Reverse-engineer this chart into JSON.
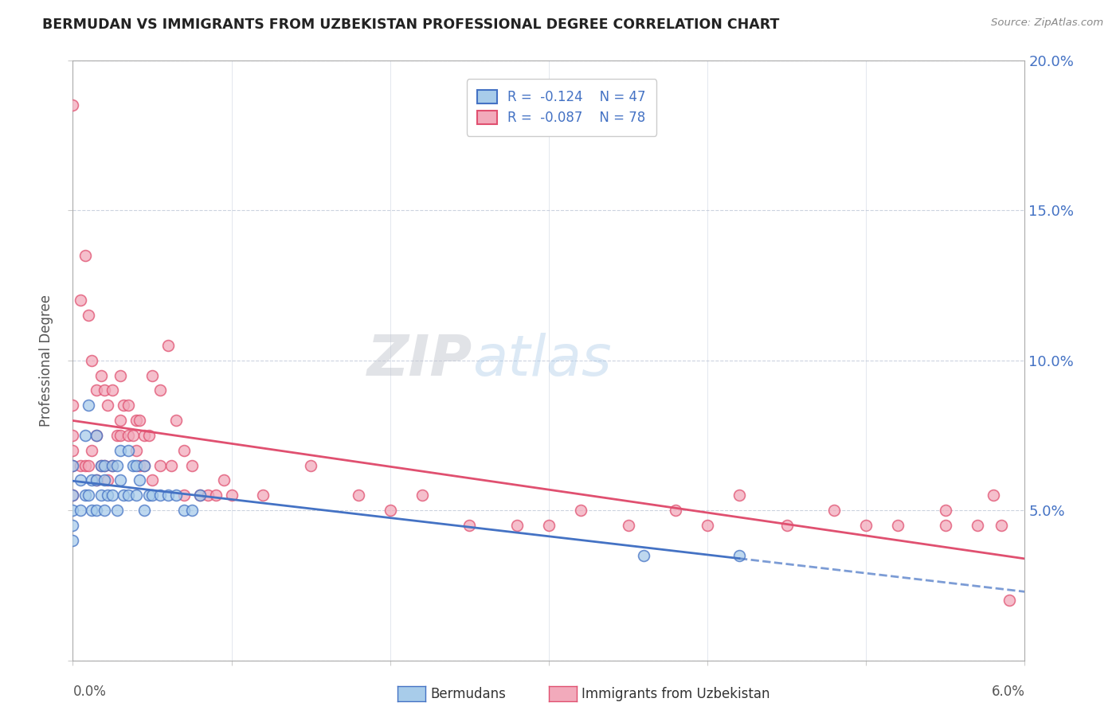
{
  "title": "BERMUDAN VS IMMIGRANTS FROM UZBEKISTAN PROFESSIONAL DEGREE CORRELATION CHART",
  "source": "Source: ZipAtlas.com",
  "ylabel": "Professional Degree",
  "xlim": [
    0.0,
    6.0
  ],
  "ylim": [
    0.0,
    20.0
  ],
  "legend_label1": "Bermudans",
  "legend_label2": "Immigrants from Uzbekistan",
  "r1": -0.124,
  "n1": 47,
  "r2": -0.087,
  "n2": 78,
  "color1": "#a8ccea",
  "color2": "#f2aabb",
  "line_color1": "#4472c4",
  "line_color2": "#e05070",
  "watermark_zip": "ZIP",
  "watermark_atlas": "atlas",
  "blue_scatter_x": [
    0.0,
    0.0,
    0.0,
    0.0,
    0.0,
    0.05,
    0.05,
    0.08,
    0.08,
    0.1,
    0.1,
    0.12,
    0.12,
    0.15,
    0.15,
    0.15,
    0.18,
    0.18,
    0.2,
    0.2,
    0.2,
    0.22,
    0.25,
    0.25,
    0.28,
    0.28,
    0.3,
    0.3,
    0.32,
    0.35,
    0.35,
    0.38,
    0.4,
    0.4,
    0.42,
    0.45,
    0.45,
    0.48,
    0.5,
    0.55,
    0.6,
    0.65,
    0.7,
    0.75,
    0.8,
    3.6,
    4.2
  ],
  "blue_scatter_y": [
    6.5,
    5.5,
    5.0,
    4.5,
    4.0,
    6.0,
    5.0,
    7.5,
    5.5,
    8.5,
    5.5,
    6.0,
    5.0,
    7.5,
    6.0,
    5.0,
    6.5,
    5.5,
    6.5,
    6.0,
    5.0,
    5.5,
    6.5,
    5.5,
    6.5,
    5.0,
    7.0,
    6.0,
    5.5,
    7.0,
    5.5,
    6.5,
    6.5,
    5.5,
    6.0,
    6.5,
    5.0,
    5.5,
    5.5,
    5.5,
    5.5,
    5.5,
    5.0,
    5.0,
    5.5,
    3.5,
    3.5
  ],
  "pink_scatter_x": [
    0.0,
    0.0,
    0.0,
    0.0,
    0.0,
    0.0,
    0.05,
    0.05,
    0.08,
    0.08,
    0.1,
    0.1,
    0.12,
    0.12,
    0.15,
    0.15,
    0.15,
    0.18,
    0.18,
    0.2,
    0.2,
    0.22,
    0.22,
    0.25,
    0.25,
    0.28,
    0.3,
    0.3,
    0.3,
    0.32,
    0.35,
    0.35,
    0.38,
    0.4,
    0.4,
    0.42,
    0.42,
    0.45,
    0.45,
    0.48,
    0.5,
    0.5,
    0.55,
    0.55,
    0.6,
    0.62,
    0.65,
    0.7,
    0.7,
    0.75,
    0.8,
    0.85,
    0.9,
    0.95,
    1.0,
    1.2,
    1.5,
    1.8,
    2.0,
    2.2,
    2.5,
    2.8,
    3.0,
    3.2,
    3.5,
    3.8,
    4.0,
    4.2,
    4.5,
    4.8,
    5.0,
    5.2,
    5.5,
    5.5,
    5.7,
    5.8,
    5.85,
    5.9
  ],
  "pink_scatter_y": [
    18.5,
    8.5,
    7.5,
    7.0,
    6.5,
    5.5,
    12.0,
    6.5,
    13.5,
    6.5,
    11.5,
    6.5,
    10.0,
    7.0,
    9.0,
    7.5,
    6.0,
    9.5,
    6.5,
    9.0,
    6.5,
    8.5,
    6.0,
    9.0,
    6.5,
    7.5,
    9.5,
    8.0,
    7.5,
    8.5,
    8.5,
    7.5,
    7.5,
    8.0,
    7.0,
    8.0,
    6.5,
    7.5,
    6.5,
    7.5,
    9.5,
    6.0,
    9.0,
    6.5,
    10.5,
    6.5,
    8.0,
    7.0,
    5.5,
    6.5,
    5.5,
    5.5,
    5.5,
    6.0,
    5.5,
    5.5,
    6.5,
    5.5,
    5.0,
    5.5,
    4.5,
    4.5,
    4.5,
    5.0,
    4.5,
    5.0,
    4.5,
    5.5,
    4.5,
    5.0,
    4.5,
    4.5,
    5.0,
    4.5,
    4.5,
    5.5,
    4.5,
    2.0
  ]
}
